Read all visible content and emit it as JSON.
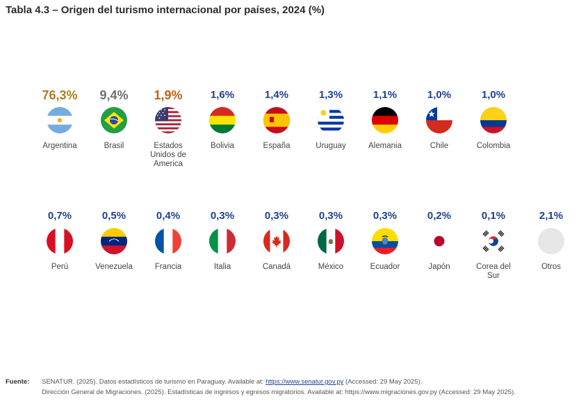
{
  "title": "Tabla 4.3 – Origen del turismo internacional por países, 2024 (%)",
  "chart_data": {
    "type": "table",
    "title": "Tabla 4.3 – Origen del turismo internacional por países, 2024 (%)",
    "categories": [
      "Argentina",
      "Brasil",
      "Estados Unidos de America",
      "Bolivia",
      "España",
      "Uruguay",
      "Alemania",
      "Chile",
      "Colombia",
      "Perú",
      "Venezuela",
      "Francia",
      "Italia",
      "Canadá",
      "México",
      "Ecuador",
      "Japón",
      "Corea del Sur",
      "Otros"
    ],
    "values": [
      "76,3%",
      "9,4%",
      "1,9%",
      "1,6%",
      "1,4%",
      "1,3%",
      "1,1%",
      "1,0%",
      "1,0%",
      "0,7%",
      "0,5%",
      "0,4%",
      "0,3%",
      "0,3%",
      "0,3%",
      "0,3%",
      "0,2%",
      "0,1%",
      "2,1%"
    ],
    "colors": {
      "gold": "#b07d1c",
      "gray": "#707070",
      "orange": "#c0601a",
      "blue": "#1f3f8f"
    },
    "value_colors": [
      "gold",
      "gray",
      "orange",
      "blue",
      "blue",
      "blue",
      "blue",
      "blue",
      "blue",
      "blue",
      "blue",
      "blue",
      "blue",
      "blue",
      "blue",
      "blue",
      "blue",
      "blue",
      "blue"
    ],
    "flags": [
      "argentina-flag-icon",
      "brazil-flag-icon",
      "usa-flag-icon",
      "bolivia-flag-icon",
      "spain-flag-icon",
      "uruguay-flag-icon",
      "germany-flag-icon",
      "chile-flag-icon",
      "colombia-flag-icon",
      "peru-flag-icon",
      "venezuela-flag-icon",
      "france-flag-icon",
      "italy-flag-icon",
      "canada-flag-icon",
      "mexico-flag-icon",
      "ecuador-flag-icon",
      "japan-flag-icon",
      "korea-flag-icon",
      "other-placeholder-icon"
    ]
  },
  "source": {
    "label": "Fuente:",
    "line1_text": "SENATUR. (2025). Datos estadísticos de turismo en Paraguay. Available at: ",
    "line1_link": "https://www.senatur.gov.py",
    "line1_suffix": " (Accessed: 29 May 2025).",
    "line2": "Dirección General de Migraciones. (2025). Estadísticas de ingresos y egresos migratorios. Available at: https://www.migraciones.gov.py (Accessed: 29 May 2025)."
  }
}
